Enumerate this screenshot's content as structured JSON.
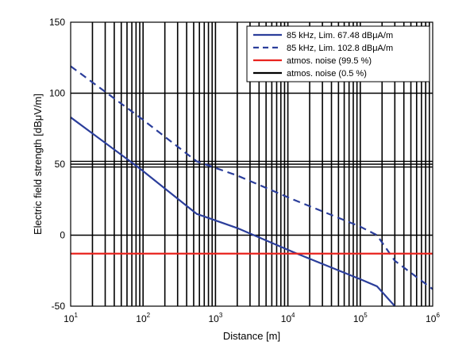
{
  "chart_data": {
    "type": "line",
    "xscale": "log",
    "xlim": [
      10,
      1000000
    ],
    "ylim": [
      -50,
      150
    ],
    "xlabel": "Distance [m]",
    "ylabel": "Electric field strength [dBμV/m]",
    "x_ticks": [
      {
        "base": "10",
        "exp": "1",
        "value": 10
      },
      {
        "base": "10",
        "exp": "2",
        "value": 100
      },
      {
        "base": "10",
        "exp": "3",
        "value": 1000
      },
      {
        "base": "10",
        "exp": "4",
        "value": 10000
      },
      {
        "base": "10",
        "exp": "5",
        "value": 100000
      },
      {
        "base": "10",
        "exp": "6",
        "value": 1000000
      }
    ],
    "y_ticks": [
      "-50",
      "0",
      "50",
      "100",
      "150"
    ],
    "y_tick_values": [
      -50,
      0,
      50,
      100,
      150
    ],
    "extra_hlines": [
      48,
      52
    ],
    "grid": true,
    "legend_position": "top-right",
    "series": [
      {
        "name": "85 kHz, Lim. 67.48 dBμA/m",
        "color": "#2b3e9b",
        "dash": "solid",
        "points": [
          [
            10,
            83
          ],
          [
            90,
            47
          ],
          [
            550,
            15
          ],
          [
            2000,
            5
          ],
          [
            12000,
            -12
          ],
          [
            100000,
            -31
          ],
          [
            170000,
            -36
          ],
          [
            300000,
            -50
          ]
        ]
      },
      {
        "name": "85 kHz, Lim. 102.8 dBμA/m",
        "color": "#2b3e9b",
        "dash": "dashed",
        "points": [
          [
            10,
            119
          ],
          [
            90,
            83
          ],
          [
            550,
            52
          ],
          [
            2000,
            42
          ],
          [
            12000,
            25
          ],
          [
            100000,
            6
          ],
          [
            170000,
            0
          ],
          [
            300000,
            -18
          ],
          [
            1000000,
            -38
          ]
        ]
      },
      {
        "name": "atmos. noise (99.5 %)",
        "color": "#e8231e",
        "dash": "solid",
        "points": [
          [
            10,
            -13
          ],
          [
            1000000,
            -13
          ]
        ]
      },
      {
        "name": "atmos. noise (0.5 %)",
        "color": "#000000",
        "dash": "solid",
        "points": []
      }
    ]
  }
}
